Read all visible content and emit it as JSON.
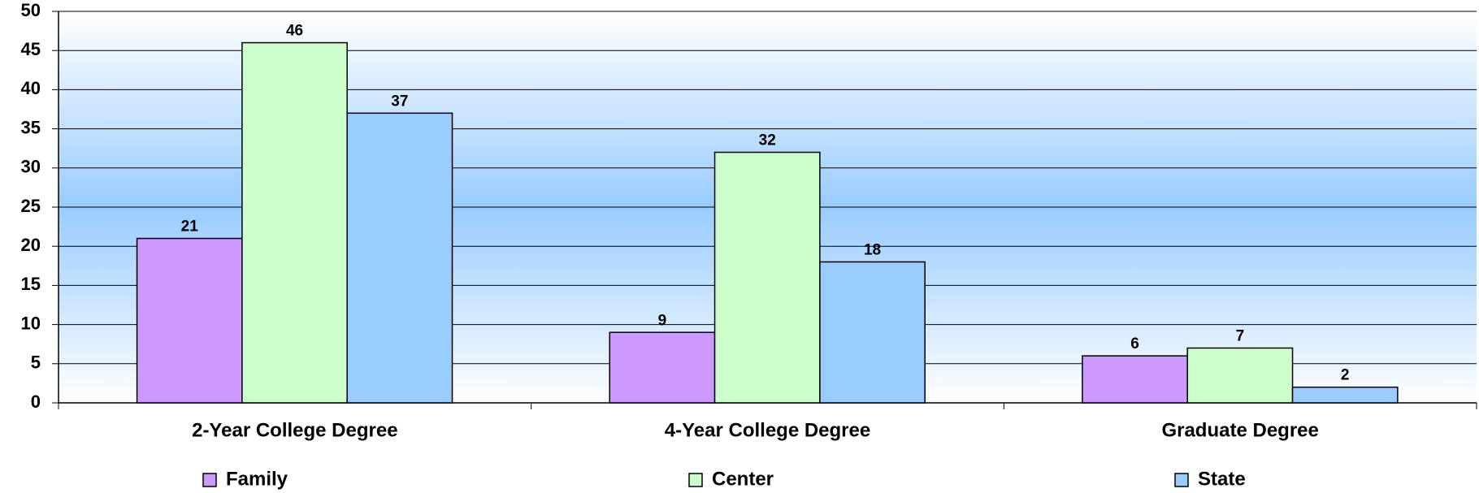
{
  "chart_data": {
    "type": "bar",
    "categories": [
      "2-Year College Degree",
      "4-Year College Degree",
      "Graduate Degree"
    ],
    "series": [
      {
        "name": "Family",
        "color": "#cc99ff",
        "values": [
          21,
          9,
          6
        ]
      },
      {
        "name": "Center",
        "color": "#ccffcc",
        "values": [
          46,
          32,
          7
        ]
      },
      {
        "name": "State",
        "color": "#99ccff",
        "values": [
          37,
          18,
          2
        ]
      }
    ],
    "ylim": [
      0,
      50
    ],
    "yticks": [
      0,
      5,
      10,
      15,
      20,
      25,
      30,
      35,
      40,
      45,
      50
    ],
    "grid": true,
    "legend": "bottom"
  }
}
